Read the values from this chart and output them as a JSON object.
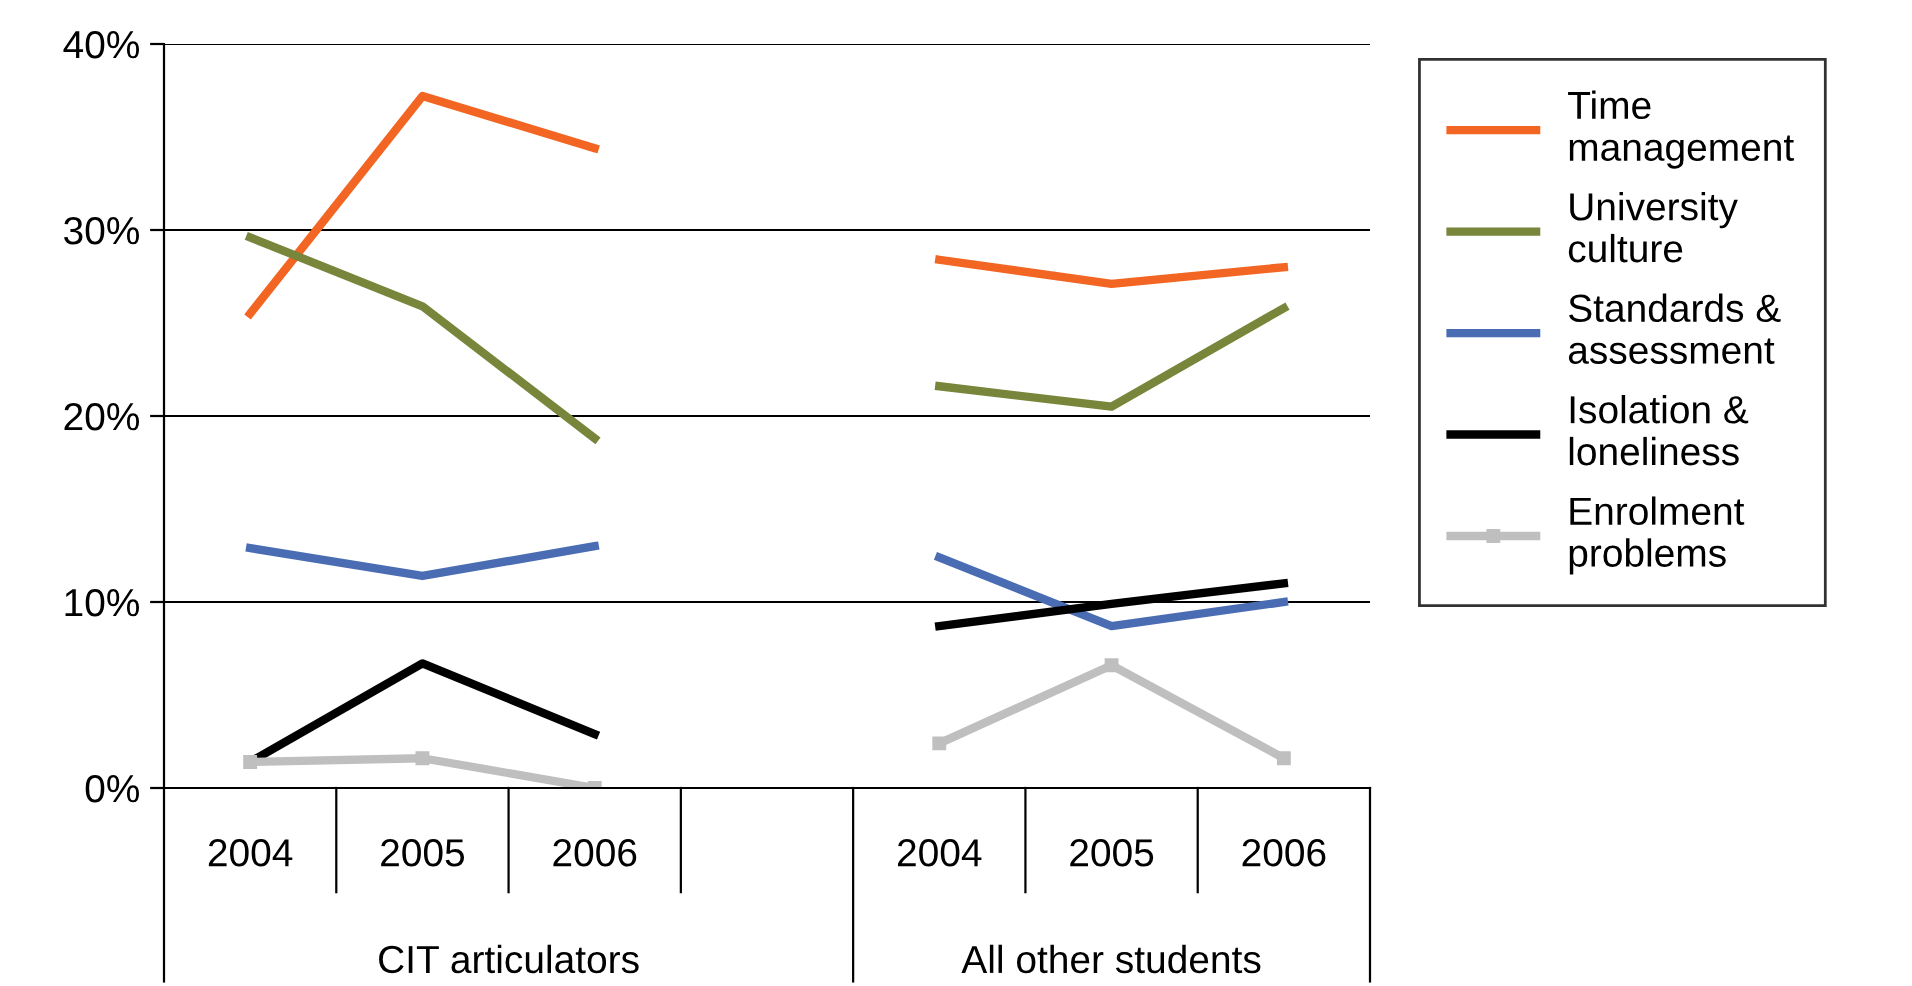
{
  "chart_data": {
    "type": "line",
    "categories": [
      "2004",
      "2005",
      "2006",
      null,
      "2004",
      "2005",
      "2006"
    ],
    "series": [
      {
        "name": "Time\nmanagement",
        "color": "#f26522",
        "values": [
          25.5,
          37.2,
          34.4,
          null,
          28.4,
          27.1,
          28.0
        ]
      },
      {
        "name": "University\nculture",
        "color": "#77863a",
        "values": [
          29.6,
          25.9,
          18.8,
          null,
          21.6,
          20.5,
          25.8
        ]
      },
      {
        "name": "Standards &\nassessment",
        "color": "#4a6cb3",
        "values": [
          12.9,
          11.4,
          13.0,
          null,
          12.4,
          8.7,
          10.0
        ]
      },
      {
        "name": "Isolation &\nloneliness",
        "color": "#000000",
        "values": [
          1.4,
          6.7,
          2.9,
          null,
          8.7,
          9.9,
          11.0
        ]
      },
      {
        "name": "Enrolment\nproblems",
        "color": "#bfbfbf",
        "values": [
          1.4,
          1.6,
          0,
          null,
          2.4,
          6.6,
          1.6
        ],
        "marker": "square"
      }
    ],
    "ylim": [
      0,
      40
    ],
    "yticks": [
      {
        "value": 0,
        "label": "0%"
      },
      {
        "value": 10,
        "label": "10%"
      },
      {
        "value": 20,
        "label": "20%"
      },
      {
        "value": 30,
        "label": "30%"
      },
      {
        "value": 40,
        "label": "40%"
      }
    ],
    "grid": "y",
    "legend": "right",
    "marker": "none",
    "annotations": [
      "CIT articulators",
      "All other students"
    ]
  }
}
